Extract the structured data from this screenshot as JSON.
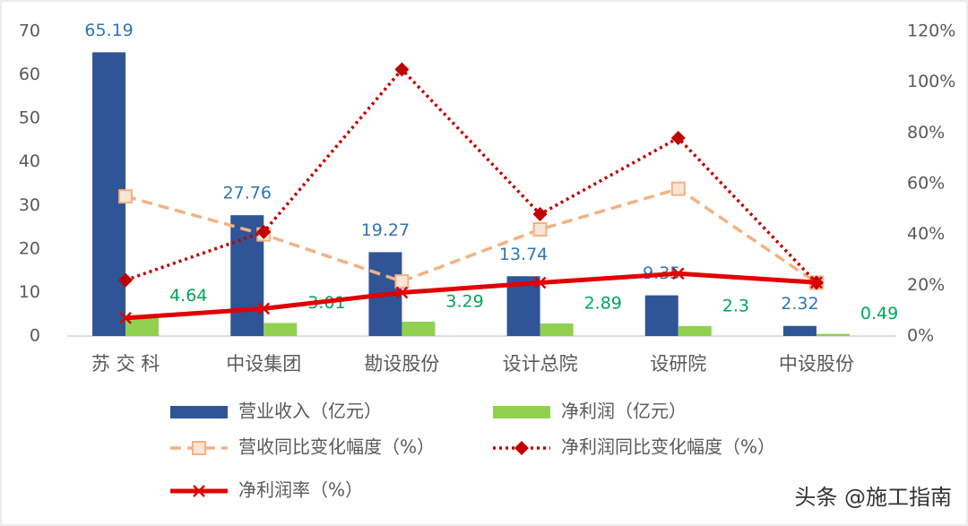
{
  "chart_data": {
    "type": "combo",
    "categories": [
      "苏 交 科",
      "中设集团",
      "勘设股份",
      "设计总院",
      "设研院",
      "中设股份"
    ],
    "ylim": [
      0,
      70
    ],
    "yticks": [
      0,
      10,
      20,
      30,
      40,
      50,
      60,
      70
    ],
    "y2lim": [
      0,
      120
    ],
    "y2ticks": [
      {
        "value": 0,
        "label": "0%"
      },
      {
        "value": 20,
        "label": "20%"
      },
      {
        "value": 40,
        "label": "40%"
      },
      {
        "value": 60,
        "label": "60%"
      },
      {
        "value": 80,
        "label": "80%"
      },
      {
        "value": 100,
        "label": "100%"
      },
      {
        "value": 120,
        "label": "120%"
      }
    ],
    "series": [
      {
        "name": "营业收入（亿元）",
        "type": "bar",
        "color": "#2f5597",
        "label_color": "#2e75b6",
        "values": [
          65.19,
          27.76,
          19.27,
          13.74,
          9.35,
          2.32
        ]
      },
      {
        "name": "净利润（亿元）",
        "type": "bar",
        "color": "#92d050",
        "label_color": "#00a65a",
        "values": [
          4.64,
          3.01,
          3.29,
          2.89,
          2.3,
          0.49
        ]
      },
      {
        "name": "营收同比变化幅度（%）",
        "type": "line",
        "axis": "y2",
        "color": "#f4b183",
        "line_style": "dashed",
        "marker": "square",
        "values": [
          55,
          40,
          21.5,
          42,
          58,
          21
        ]
      },
      {
        "name": "净利润同比变化幅度（%）",
        "type": "line",
        "axis": "y2",
        "color": "#c00000",
        "line_style": "dotted",
        "marker": "diamond",
        "values": [
          22,
          41,
          105,
          48,
          78,
          21
        ]
      },
      {
        "name": "净利润率（%）",
        "type": "line",
        "axis": "y2",
        "color": "#e00000",
        "line_style": "solid",
        "marker": "x",
        "values": [
          7.1,
          10.8,
          17.1,
          21.0,
          24.6,
          21.1
        ]
      }
    ],
    "watermark": "头条 @施工指南"
  }
}
